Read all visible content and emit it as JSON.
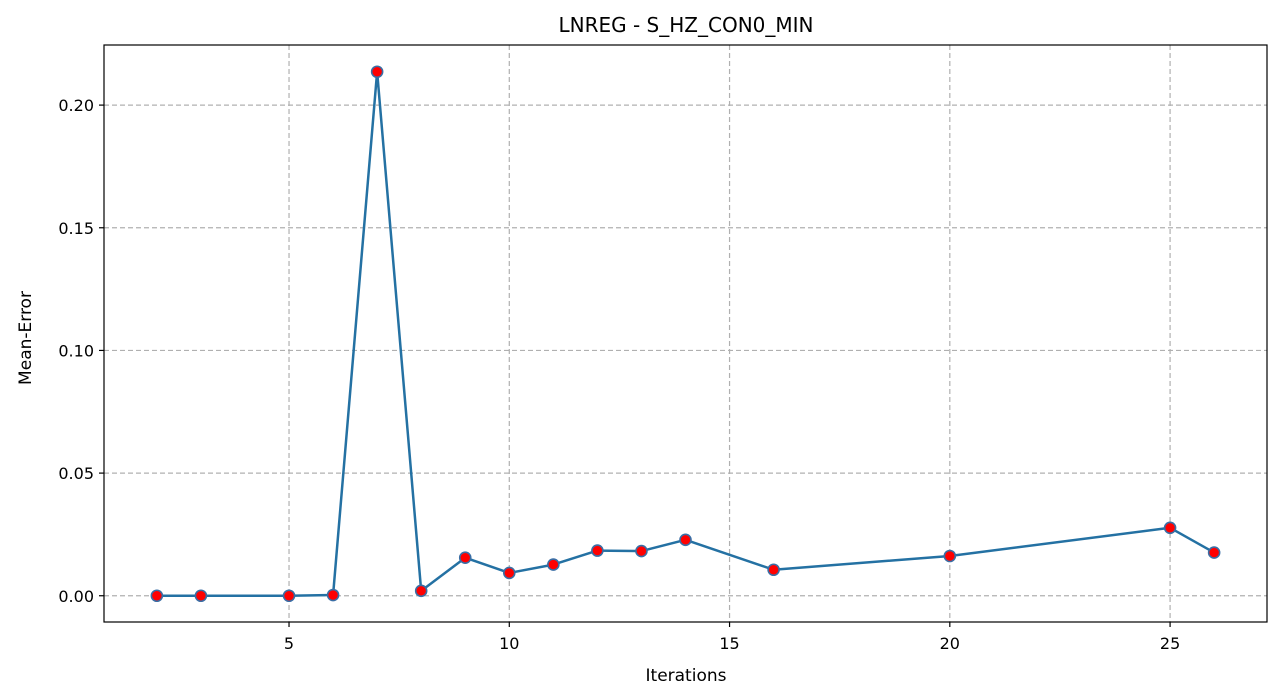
{
  "chart_data": {
    "type": "line",
    "title": "LNREG - S_HZ_CON0_MIN",
    "xlabel": "Iterations",
    "ylabel": "Mean-Error",
    "xlim": [
      0.8,
      27.2
    ],
    "ylim": [
      -0.0107,
      0.2245
    ],
    "xticks": [
      5,
      10,
      15,
      20,
      25
    ],
    "yticks": [
      0.0,
      0.05,
      0.1,
      0.15,
      0.2
    ],
    "ytick_labels": [
      "0.00",
      "0.05",
      "0.10",
      "0.15",
      "0.20"
    ],
    "grid": true,
    "series": [
      {
        "x": [
          2,
          3,
          5,
          6,
          7,
          8,
          9,
          10,
          11,
          12,
          13,
          14,
          16,
          20,
          25,
          26
        ],
        "y": [
          0.0,
          0.0,
          0.0,
          0.0003,
          0.2136,
          0.002,
          0.0155,
          0.0093,
          0.0127,
          0.0184,
          0.0182,
          0.0228,
          0.0106,
          0.0162,
          0.0277,
          0.0176
        ],
        "line_color": "#2471a3",
        "marker_face": "#ff0000",
        "marker_edge": "#3a6ea5"
      }
    ]
  }
}
